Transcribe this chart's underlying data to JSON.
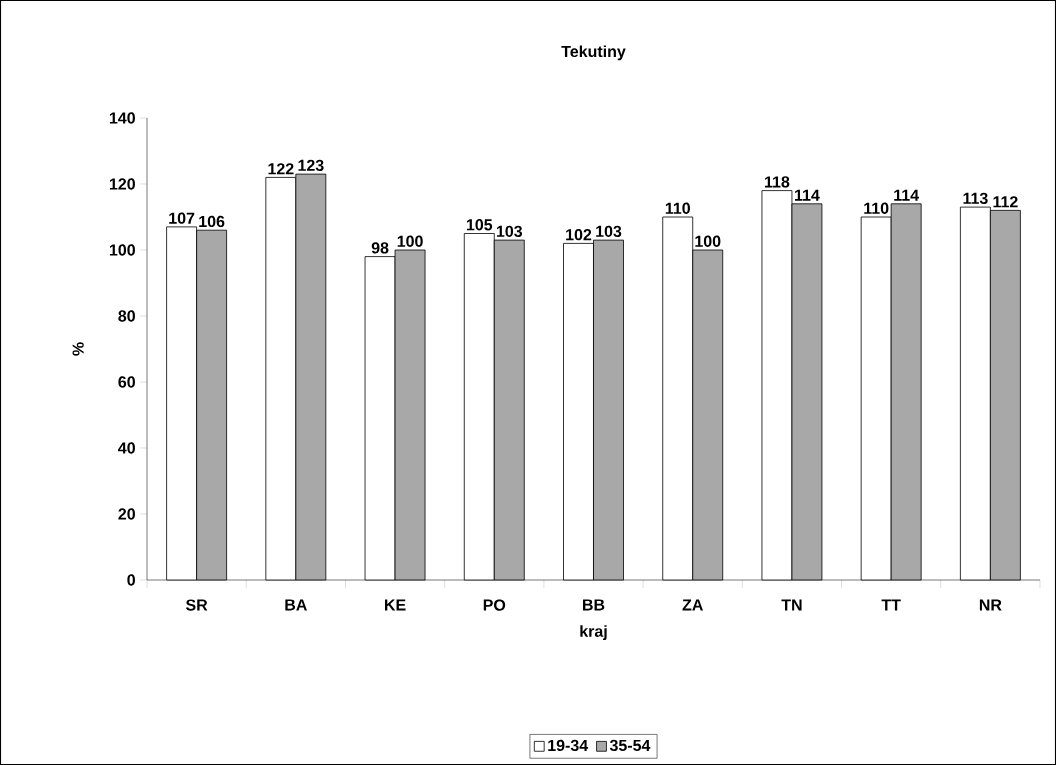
{
  "chart_data": {
    "type": "bar",
    "title": "Tekutiny",
    "xlabel": "kraj",
    "ylabel": "%",
    "categories": [
      "SR",
      "BA",
      "KE",
      "PO",
      "BB",
      "ZA",
      "TN",
      "TT",
      "NR"
    ],
    "series": [
      {
        "name": "19-34",
        "color": "#ffffff",
        "values": [
          107,
          122,
          98,
          105,
          102,
          110,
          118,
          110,
          113
        ]
      },
      {
        "name": "35-54",
        "color": "#a8a8a8",
        "values": [
          106,
          123,
          100,
          103,
          103,
          100,
          114,
          114,
          112
        ]
      }
    ],
    "ylim": [
      0,
      140
    ],
    "yticks": [
      0,
      20,
      40,
      60,
      80,
      100,
      120,
      140
    ],
    "grid": false,
    "legend": "bottom",
    "data_labels": true
  }
}
